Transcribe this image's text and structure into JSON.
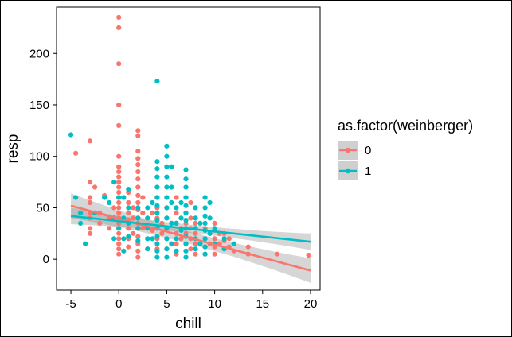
{
  "chart_data": {
    "type": "scatter",
    "xlabel": "chill",
    "ylabel": "resp",
    "xlim": [
      -6.5,
      21.0
    ],
    "ylim": [
      -30,
      245
    ],
    "x_ticks": [
      -5,
      0,
      5,
      10,
      15,
      20
    ],
    "x_tick_labels": [
      "-5",
      "0",
      "5",
      "10",
      "15",
      "20"
    ],
    "y_ticks": [
      0,
      50,
      100,
      150,
      200
    ],
    "y_tick_labels": [
      "0",
      "50",
      "100",
      "150",
      "200"
    ],
    "grid": false,
    "legend": {
      "title": "as.factor(weinberger)",
      "position": "right",
      "entries": [
        "0",
        "1"
      ]
    },
    "series": [
      {
        "name": "0",
        "color": "#F8766D",
        "points": [
          [
            0,
            235
          ],
          [
            0,
            225
          ],
          [
            0,
            190
          ],
          [
            0,
            150
          ],
          [
            0,
            130
          ],
          [
            0,
            100
          ],
          [
            0,
            90
          ],
          [
            0,
            85
          ],
          [
            0,
            80
          ],
          [
            0,
            75
          ],
          [
            0,
            70
          ],
          [
            0,
            65
          ],
          [
            0,
            60
          ],
          [
            0,
            55
          ],
          [
            0,
            50
          ],
          [
            0,
            45
          ],
          [
            0,
            40
          ],
          [
            0,
            35
          ],
          [
            0,
            30
          ],
          [
            0,
            25
          ],
          [
            0,
            20
          ],
          [
            0,
            15
          ],
          [
            0,
            10
          ],
          [
            0,
            5
          ],
          [
            -4.5,
            103
          ],
          [
            -3,
            115
          ],
          [
            -3,
            75
          ],
          [
            -3,
            60
          ],
          [
            -3,
            55
          ],
          [
            -3,
            45
          ],
          [
            -3,
            40
          ],
          [
            -3,
            30
          ],
          [
            -3,
            25
          ],
          [
            -2.5,
            70
          ],
          [
            -2,
            35
          ],
          [
            -2,
            45
          ],
          [
            -1.5,
            62
          ],
          [
            -1,
            30
          ],
          [
            -1,
            40
          ],
          [
            -0.5,
            50
          ],
          [
            1,
            65
          ],
          [
            1,
            55
          ],
          [
            1,
            45
          ],
          [
            1,
            38
          ],
          [
            1,
            30
          ],
          [
            1,
            20
          ],
          [
            1,
            12
          ],
          [
            1.5,
            50
          ],
          [
            1.5,
            40
          ],
          [
            1.5,
            25
          ],
          [
            2,
            125
          ],
          [
            2,
            120
          ],
          [
            2,
            105
          ],
          [
            2,
            98
          ],
          [
            2,
            92
          ],
          [
            2,
            85
          ],
          [
            2,
            78
          ],
          [
            2,
            70
          ],
          [
            2,
            62
          ],
          [
            2,
            55
          ],
          [
            2,
            48
          ],
          [
            2,
            40
          ],
          [
            2,
            35
          ],
          [
            2,
            30
          ],
          [
            2,
            22
          ],
          [
            2,
            15
          ],
          [
            2,
            8
          ],
          [
            2,
            2
          ],
          [
            2.5,
            60
          ],
          [
            2.5,
            45
          ],
          [
            2.5,
            30
          ],
          [
            3,
            40
          ],
          [
            3,
            30
          ],
          [
            3,
            20
          ],
          [
            3,
            10
          ],
          [
            3.5,
            45
          ],
          [
            3.5,
            28
          ],
          [
            4,
            60
          ],
          [
            4,
            50
          ],
          [
            4,
            40
          ],
          [
            4,
            30
          ],
          [
            4,
            20
          ],
          [
            4,
            10
          ],
          [
            4.5,
            35
          ],
          [
            4.5,
            25
          ],
          [
            5,
            50
          ],
          [
            5,
            40
          ],
          [
            5,
            30
          ],
          [
            5,
            20
          ],
          [
            5,
            10
          ],
          [
            5.5,
            35
          ],
          [
            5.5,
            15
          ],
          [
            6,
            60
          ],
          [
            6,
            45
          ],
          [
            6,
            35
          ],
          [
            6,
            25
          ],
          [
            6,
            15
          ],
          [
            6,
            5
          ],
          [
            6.5,
            30
          ],
          [
            6.5,
            20
          ],
          [
            7,
            45
          ],
          [
            7,
            35
          ],
          [
            7,
            25
          ],
          [
            7,
            15
          ],
          [
            7,
            8
          ],
          [
            7.5,
            55
          ],
          [
            7.5,
            40
          ],
          [
            7.5,
            30
          ],
          [
            7.5,
            20
          ],
          [
            7.5,
            10
          ],
          [
            8,
            35
          ],
          [
            8,
            25
          ],
          [
            8,
            15
          ],
          [
            8,
            5
          ],
          [
            9,
            30
          ],
          [
            9,
            20
          ],
          [
            9,
            12
          ],
          [
            9,
            5
          ],
          [
            9.5,
            25
          ],
          [
            9.5,
            15
          ],
          [
            10,
            35
          ],
          [
            10,
            28
          ],
          [
            10,
            20
          ],
          [
            10,
            12
          ],
          [
            10,
            5
          ],
          [
            10.5,
            25
          ],
          [
            10.5,
            15
          ],
          [
            11,
            25
          ],
          [
            11,
            18
          ],
          [
            11,
            10
          ],
          [
            11.5,
            20
          ],
          [
            11.5,
            12
          ],
          [
            12,
            15
          ],
          [
            12,
            8
          ],
          [
            13.5,
            12
          ],
          [
            13.5,
            5
          ],
          [
            16.5,
            5
          ],
          [
            19.8,
            4
          ]
        ]
      },
      {
        "name": "1",
        "color": "#00BFC4",
        "points": [
          [
            -5,
            121
          ],
          [
            -4.5,
            60
          ],
          [
            -4,
            45
          ],
          [
            -4,
            35
          ],
          [
            -3.5,
            15
          ],
          [
            -2.5,
            45
          ],
          [
            -1.5,
            60
          ],
          [
            -1,
            55
          ],
          [
            -0.5,
            75
          ],
          [
            -0.5,
            40
          ],
          [
            -0.5,
            20
          ],
          [
            0,
            60
          ],
          [
            0,
            30
          ],
          [
            0.5,
            60
          ],
          [
            0.5,
            40
          ],
          [
            0.5,
            20
          ],
          [
            0.5,
            8
          ],
          [
            1,
            68
          ],
          [
            1,
            50
          ],
          [
            1,
            35
          ],
          [
            1,
            22
          ],
          [
            2,
            50
          ],
          [
            2,
            40
          ],
          [
            2,
            30
          ],
          [
            2,
            18
          ],
          [
            3,
            50
          ],
          [
            3,
            40
          ],
          [
            3,
            30
          ],
          [
            3,
            20
          ],
          [
            3,
            10
          ],
          [
            3.5,
            55
          ],
          [
            3.5,
            20
          ],
          [
            4,
            173
          ],
          [
            4,
            95
          ],
          [
            4,
            88
          ],
          [
            4,
            80
          ],
          [
            4,
            70
          ],
          [
            4,
            60
          ],
          [
            4,
            52
          ],
          [
            4,
            45
          ],
          [
            4,
            38
          ],
          [
            4,
            30
          ],
          [
            4,
            22
          ],
          [
            4,
            15
          ],
          [
            4,
            8
          ],
          [
            4,
            2
          ],
          [
            5,
            110
          ],
          [
            5,
            100
          ],
          [
            5,
            90
          ],
          [
            5,
            80
          ],
          [
            5,
            70
          ],
          [
            5,
            60
          ],
          [
            5,
            50
          ],
          [
            5,
            40
          ],
          [
            5,
            30
          ],
          [
            5,
            20
          ],
          [
            5,
            10
          ],
          [
            5,
            2
          ],
          [
            5.5,
            90
          ],
          [
            5.5,
            70
          ],
          [
            5.5,
            55
          ],
          [
            5.5,
            35
          ],
          [
            5.5,
            15
          ],
          [
            6,
            50
          ],
          [
            6,
            35
          ],
          [
            6,
            20
          ],
          [
            6,
            8
          ],
          [
            6.5,
            55
          ],
          [
            6.5,
            40
          ],
          [
            6.5,
            28
          ],
          [
            7,
            87
          ],
          [
            7,
            78
          ],
          [
            7,
            70
          ],
          [
            7,
            60
          ],
          [
            7,
            52
          ],
          [
            7,
            45
          ],
          [
            7,
            38
          ],
          [
            7,
            30
          ],
          [
            7,
            22
          ],
          [
            7,
            15
          ],
          [
            7,
            8
          ],
          [
            7,
            2
          ],
          [
            8,
            50
          ],
          [
            8,
            40
          ],
          [
            8,
            30
          ],
          [
            8,
            20
          ],
          [
            8,
            10
          ],
          [
            8.5,
            35
          ],
          [
            8.5,
            15
          ],
          [
            9,
            60
          ],
          [
            9,
            50
          ],
          [
            9,
            42
          ],
          [
            9,
            35
          ],
          [
            9,
            28
          ],
          [
            9,
            20
          ],
          [
            9,
            12
          ],
          [
            9,
            5
          ],
          [
            9.5,
            55
          ],
          [
            9.5,
            40
          ],
          [
            9.5,
            25
          ],
          [
            10,
            30
          ],
          [
            10,
            15
          ],
          [
            11,
            20
          ],
          [
            11,
            10
          ],
          [
            12,
            15
          ]
        ]
      }
    ],
    "fits": [
      {
        "name": "0",
        "color": "#F8766D",
        "x": [
          -5,
          20
        ],
        "y": [
          52,
          -11
        ],
        "ci": [
          6,
          12
        ]
      },
      {
        "name": "1",
        "color": "#00BFC4",
        "x": [
          -5,
          20
        ],
        "y": [
          42,
          17
        ],
        "ci": [
          4,
          8
        ]
      }
    ]
  }
}
